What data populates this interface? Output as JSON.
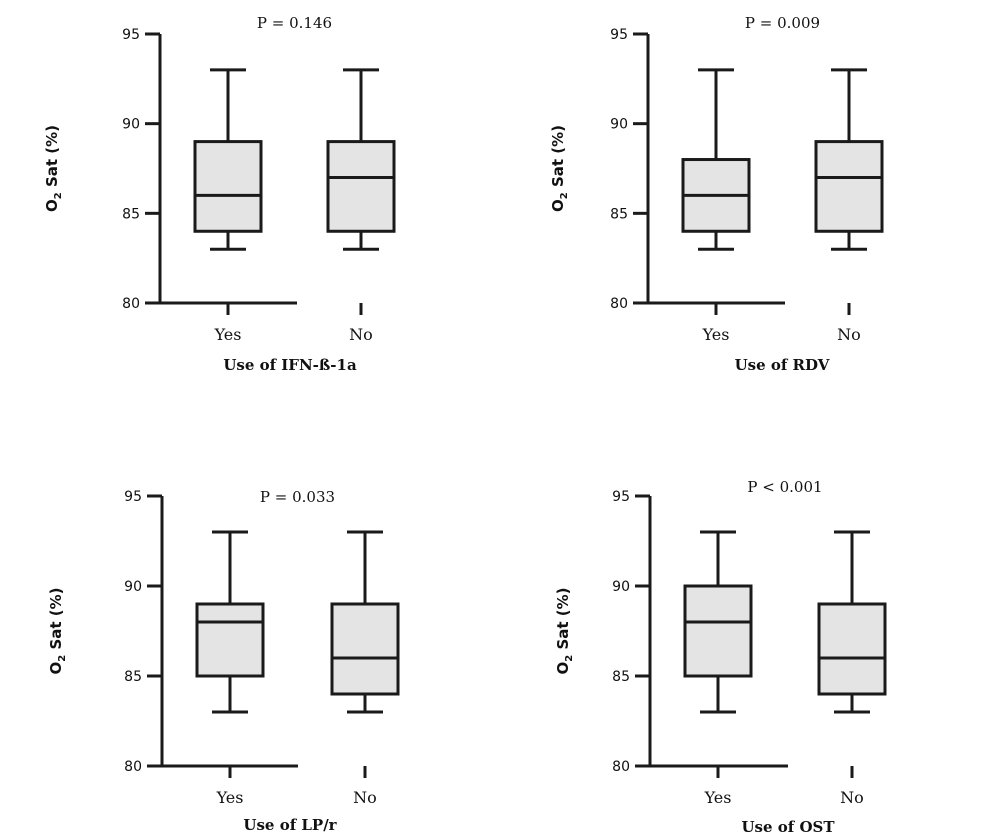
{
  "chart_data": [
    {
      "type": "box",
      "title": "P = 0.146",
      "xlabel": "Use of IFN-ß-1a",
      "ylabel": {
        "main": "O",
        "sub": "2",
        "rest": " Sat (%)"
      },
      "ylim": [
        80,
        95
      ],
      "yticks": [
        "80",
        "85",
        "90",
        "95"
      ],
      "categories": [
        "Yes",
        "No"
      ],
      "boxes": [
        {
          "min": 83,
          "q1": 84,
          "median": 86,
          "q3": 89,
          "max": 93
        },
        {
          "min": 83,
          "q1": 84,
          "median": 87,
          "q3": 89,
          "max": 93
        }
      ]
    },
    {
      "type": "box",
      "title": "P = 0.009",
      "xlabel": "Use of RDV",
      "ylabel": {
        "main": "O",
        "sub": "2",
        "rest": " Sat (%)"
      },
      "ylim": [
        80,
        95
      ],
      "yticks": [
        "80",
        "85",
        "90",
        "95"
      ],
      "categories": [
        "Yes",
        "No"
      ],
      "boxes": [
        {
          "min": 83,
          "q1": 84,
          "median": 86,
          "q3": 88,
          "max": 93
        },
        {
          "min": 83,
          "q1": 84,
          "median": 87,
          "q3": 89,
          "max": 93
        }
      ]
    },
    {
      "type": "box",
      "title": "P = 0.033",
      "xlabel": "Use of LP/r",
      "ylabel": {
        "main": "O",
        "sub": "2",
        "rest": " Sat (%)"
      },
      "ylim": [
        80,
        95
      ],
      "yticks": [
        "80",
        "85",
        "90",
        "95"
      ],
      "categories": [
        "Yes",
        "No"
      ],
      "boxes": [
        {
          "min": 83,
          "q1": 85,
          "median": 88,
          "q3": 89,
          "max": 93
        },
        {
          "min": 83,
          "q1": 84,
          "median": 86,
          "q3": 89,
          "max": 93
        }
      ]
    },
    {
      "type": "box",
      "title": "P < 0.001",
      "xlabel": "Use of OST",
      "ylabel": {
        "main": "O",
        "sub": "2",
        "rest": " Sat (%)"
      },
      "ylim": [
        80,
        95
      ],
      "yticks": [
        "80",
        "85",
        "90",
        "95"
      ],
      "categories": [
        "Yes",
        "No"
      ],
      "boxes": [
        {
          "min": 83,
          "q1": 85,
          "median": 88,
          "q3": 90,
          "max": 93
        },
        {
          "min": 83,
          "q1": 84,
          "median": 86,
          "q3": 89,
          "max": 93
        }
      ]
    }
  ],
  "colors": {
    "box_fill": "#e3e4e3",
    "stroke": "#1a1a1a"
  }
}
